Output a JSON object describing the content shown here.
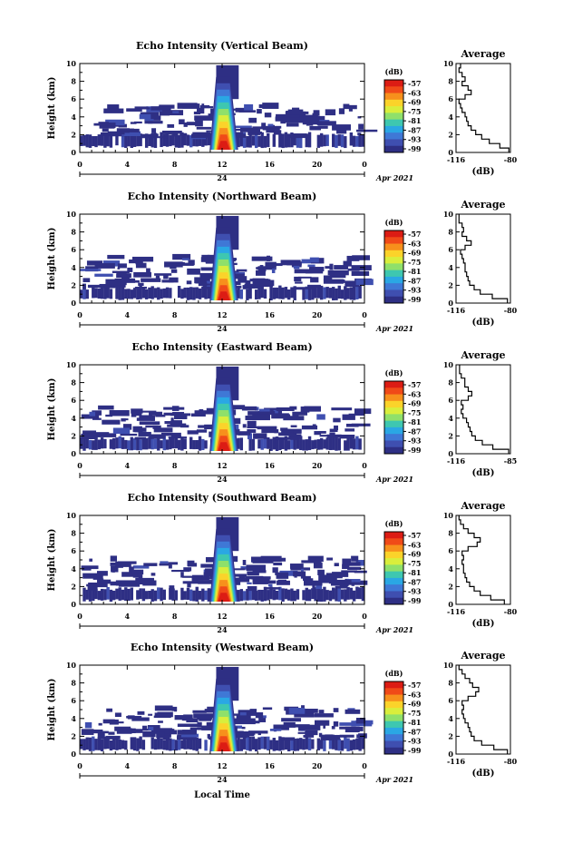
{
  "figure": {
    "xlabel": "Local Time",
    "date_label": "Apr 2021",
    "date_day": "24"
  },
  "colorbar": {
    "unit": "(dB)",
    "tick_labels": [
      "-57",
      "-63",
      "-69",
      "-75",
      "-81",
      "-87",
      "-93",
      "-99"
    ],
    "colors": [
      "#dc1c14",
      "#f04a18",
      "#f7901c",
      "#fbd32a",
      "#d9ee3c",
      "#8fe06a",
      "#3ec7b0",
      "#2aa7e4",
      "#3f78d6",
      "#3f4fb0",
      "#2e2f84"
    ]
  },
  "chart_data": [
    {
      "type": "heatmap",
      "title": "Echo Intensity (Vertical Beam)",
      "xlabel": "Local Time",
      "ylabel": "Height (km)",
      "x_ticks": [
        "0",
        "4",
        "8",
        "12",
        "16",
        "20",
        "0"
      ],
      "y_ticks": [
        "0",
        "2",
        "4",
        "6",
        "8",
        "10"
      ],
      "xlim": [
        0,
        24
      ],
      "ylim": [
        0,
        10
      ],
      "z_unit": "dB",
      "z_range": [
        -99,
        -57
      ],
      "features": {
        "storm_core_hours": [
          11.5,
          13.0
        ],
        "storm_top_km": 9.8,
        "low_layer_km": [
          0.5,
          1.8
        ],
        "midlevel_echo_km": [
          1.5,
          5.0
        ]
      },
      "profile": {
        "title": "Average",
        "xlabel": "(dB)",
        "xlim": [
          -116,
          -80
        ],
        "x_ticks": [
          "-116",
          "-80"
        ],
        "y_ticks": [
          "0",
          "2",
          "4",
          "6",
          "8",
          "10"
        ],
        "height_km": [
          0,
          0.5,
          1,
          1.5,
          2,
          2.5,
          3,
          3.5,
          4,
          4.5,
          5,
          5.5,
          6,
          6.5,
          7,
          7.5,
          8,
          8.5,
          9,
          9.5
        ],
        "db": [
          -81,
          -87,
          -94,
          -99,
          -103,
          -106,
          -108,
          -109,
          -110,
          -112,
          -113,
          -114,
          -110,
          -106,
          -108,
          -112,
          -110,
          -112,
          -114,
          -113
        ]
      }
    },
    {
      "type": "heatmap",
      "title": "Echo Intensity (Northward Beam)",
      "xlabel": "Local Time",
      "ylabel": "Height (km)",
      "x_ticks": [
        "0",
        "4",
        "8",
        "12",
        "16",
        "20",
        "0"
      ],
      "y_ticks": [
        "0",
        "2",
        "4",
        "6",
        "8",
        "10"
      ],
      "xlim": [
        0,
        24
      ],
      "ylim": [
        0,
        10
      ],
      "z_unit": "dB",
      "z_range": [
        -99,
        -57
      ],
      "features": {
        "storm_core_hours": [
          11.5,
          13.0
        ],
        "storm_top_km": 9.8,
        "low_layer_km": [
          0.3,
          1.5
        ],
        "midlevel_echo_km": [
          1.5,
          5.0
        ]
      },
      "profile": {
        "title": "Average",
        "xlabel": "(dB)",
        "xlim": [
          -116,
          -80
        ],
        "x_ticks": [
          "-116",
          "-80"
        ],
        "y_ticks": [
          "0",
          "2",
          "4",
          "6",
          "8",
          "10"
        ],
        "height_km": [
          0,
          0.5,
          1,
          1.5,
          2,
          2.5,
          3,
          3.5,
          4,
          4.5,
          5,
          5.5,
          6,
          6.5,
          7,
          7.5,
          8,
          8.5,
          9,
          9.5
        ],
        "db": [
          -82,
          -92,
          -100,
          -104,
          -107,
          -108,
          -109,
          -110,
          -110,
          -111,
          -112,
          -113,
          -110,
          -106,
          -109,
          -112,
          -111,
          -112,
          -114,
          -114
        ]
      }
    },
    {
      "type": "heatmap",
      "title": "Echo Intensity (Eastward Beam)",
      "xlabel": "Local Time",
      "ylabel": "Height (km)",
      "x_ticks": [
        "0",
        "4",
        "8",
        "12",
        "16",
        "20",
        "0"
      ],
      "y_ticks": [
        "0",
        "2",
        "4",
        "6",
        "8",
        "10"
      ],
      "xlim": [
        0,
        24
      ],
      "ylim": [
        0,
        10
      ],
      "z_unit": "dB",
      "z_range": [
        -99,
        -57
      ],
      "features": {
        "storm_core_hours": [
          11.5,
          13.0
        ],
        "storm_top_km": 9.8,
        "low_layer_km": [
          0.3,
          1.5
        ],
        "midlevel_echo_km": [
          1.5,
          5.0
        ]
      },
      "profile": {
        "title": "Average",
        "xlabel": "(dB)",
        "xlim": [
          -116,
          -85
        ],
        "x_ticks": [
          "-116",
          "-85"
        ],
        "y_ticks": [
          "0",
          "2",
          "4",
          "6",
          "8",
          "10"
        ],
        "height_km": [
          0,
          0.5,
          1,
          1.5,
          2,
          2.5,
          3,
          3.5,
          4,
          4.5,
          5,
          5.5,
          6,
          6.5,
          7,
          7.5,
          8,
          8.5,
          9,
          9.5
        ],
        "db": [
          -86,
          -95,
          -101,
          -105,
          -107,
          -108,
          -109,
          -110,
          -112,
          -113,
          -112,
          -113,
          -109,
          -107,
          -109,
          -111,
          -111,
          -113,
          -114,
          -114
        ]
      }
    },
    {
      "type": "heatmap",
      "title": "Echo Intensity (Southward Beam)",
      "xlabel": "Local Time",
      "ylabel": "Height (km)",
      "x_ticks": [
        "0",
        "4",
        "8",
        "12",
        "16",
        "20",
        "0"
      ],
      "y_ticks": [
        "0",
        "2",
        "4",
        "6",
        "8",
        "10"
      ],
      "xlim": [
        0,
        24
      ],
      "ylim": [
        0,
        10
      ],
      "z_unit": "dB",
      "z_range": [
        -99,
        -57
      ],
      "features": {
        "storm_core_hours": [
          11.5,
          13.0
        ],
        "storm_top_km": 9.8,
        "low_layer_km": [
          0.3,
          1.5
        ],
        "midlevel_echo_km": [
          1.5,
          5.0
        ]
      },
      "profile": {
        "title": "Average",
        "xlabel": "(dB)",
        "xlim": [
          -116,
          -80
        ],
        "x_ticks": [
          "-116",
          "-80"
        ],
        "y_ticks": [
          "0",
          "2",
          "4",
          "6",
          "8",
          "10"
        ],
        "height_km": [
          0,
          0.5,
          1,
          1.5,
          2,
          2.5,
          3,
          3.5,
          4,
          4.5,
          5,
          5.5,
          6,
          6.5,
          7,
          7.5,
          8,
          8.5,
          9,
          9.5
        ],
        "db": [
          -84,
          -93,
          -100,
          -104,
          -107,
          -109,
          -110,
          -111,
          -111,
          -112,
          -111,
          -112,
          -108,
          -102,
          -100,
          -104,
          -108,
          -111,
          -113,
          -114
        ]
      }
    },
    {
      "type": "heatmap",
      "title": "Echo Intensity (Westward Beam)",
      "xlabel": "Local Time",
      "ylabel": "Height (km)",
      "x_ticks": [
        "0",
        "4",
        "8",
        "12",
        "16",
        "20",
        "0"
      ],
      "y_ticks": [
        "0",
        "2",
        "4",
        "6",
        "8",
        "10"
      ],
      "xlim": [
        0,
        24
      ],
      "ylim": [
        0,
        10
      ],
      "z_unit": "dB",
      "z_range": [
        -99,
        -57
      ],
      "features": {
        "storm_core_hours": [
          11.5,
          13.0
        ],
        "storm_top_km": 9.8,
        "low_layer_km": [
          0.3,
          1.5
        ],
        "midlevel_echo_km": [
          1.5,
          5.0
        ]
      },
      "profile": {
        "title": "Average",
        "xlabel": "(dB)",
        "xlim": [
          -116,
          -80
        ],
        "x_ticks": [
          "-116",
          "-80"
        ],
        "y_ticks": [
          "0",
          "2",
          "4",
          "6",
          "8",
          "10"
        ],
        "height_km": [
          0,
          0.5,
          1,
          1.5,
          2,
          2.5,
          3,
          3.5,
          4,
          4.5,
          5,
          5.5,
          6,
          6.5,
          7,
          7.5,
          8,
          8.5,
          9,
          9.5
        ],
        "db": [
          -82,
          -91,
          -99,
          -104,
          -106,
          -107,
          -108,
          -110,
          -111,
          -112,
          -111,
          -112,
          -108,
          -103,
          -101,
          -105,
          -107,
          -110,
          -112,
          -114
        ]
      }
    }
  ]
}
